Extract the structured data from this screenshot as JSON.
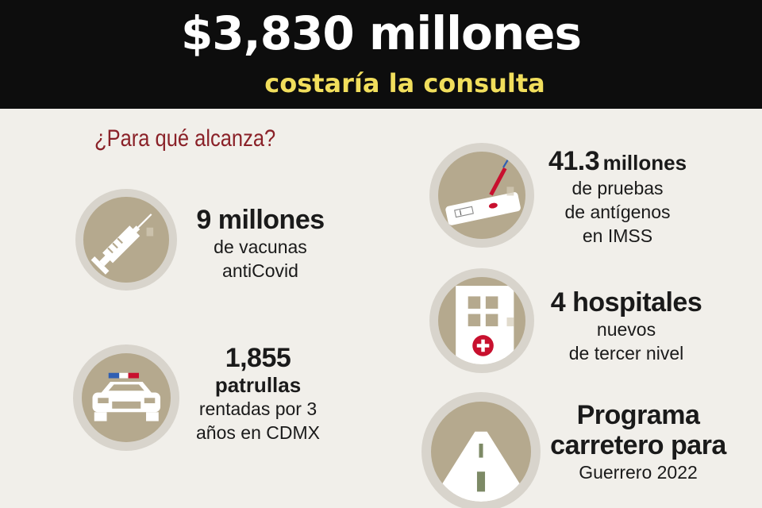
{
  "header": {
    "headline": "$3,830 millones",
    "subline": "costaría la consulta"
  },
  "question": "¿Para qué alcanza?",
  "items": {
    "vacunas": {
      "big": "9 millones",
      "line1": "de vacunas",
      "line2": "antiCovid",
      "icon": "syringe-icon"
    },
    "patrullas": {
      "big": "1,855",
      "mid": "patrullas",
      "line1": "rentadas por 3",
      "line2": "años en CDMX",
      "icon": "police-car-icon"
    },
    "pruebas": {
      "big": "41.3",
      "mid": "millones",
      "line1": "de pruebas",
      "line2": "de antígenos",
      "line3": "en IMSS",
      "icon": "antigen-test-icon"
    },
    "hospitales": {
      "big": "4 hospitales",
      "line1": "nuevos",
      "line2": "de tercer nivel",
      "icon": "hospital-icon"
    },
    "carretero": {
      "big1": "Programa",
      "big2": "carretero para",
      "line1": "Guerrero 2022",
      "icon": "road-icon"
    }
  },
  "colors": {
    "header_bg": "#0d0d0d",
    "headline": "#ffffff",
    "subline": "#f1de5c",
    "question": "#8a2128",
    "badge_fill": "#b5a98e",
    "accent_red": "#c8102e"
  }
}
